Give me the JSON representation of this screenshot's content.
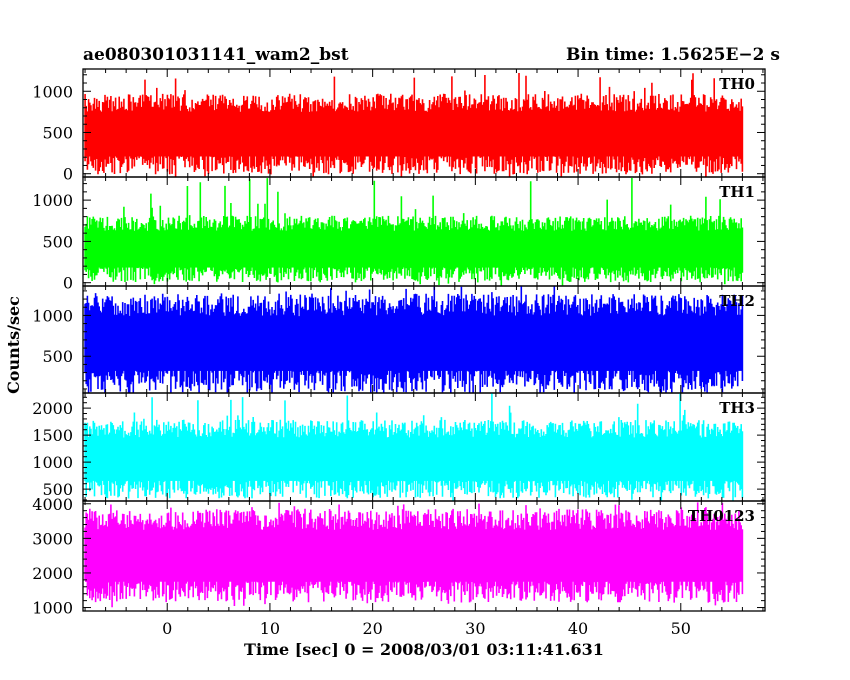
{
  "figure": {
    "title_left": "ae080301031141_wam2_bst",
    "title_right": "Bin time: 1.5625E−2 s",
    "xlabel": "Time [sec] 0 = 2008/03/01 03:11:41.631",
    "ylabel": "Counts/sec"
  },
  "chart_data": [
    {
      "type": "line",
      "name": "TH0",
      "color": "#ff0000",
      "xlim": [
        -8.2,
        58.2
      ],
      "x_range_data": [
        -8.0,
        56.0
      ],
      "ylim": [
        -40,
        1270
      ],
      "yticks": [
        0,
        500,
        1000
      ],
      "ytick_labels": [
        "0",
        "500",
        "1000"
      ],
      "lower_envelope_typical": 120,
      "upper_envelope_typical": 860,
      "occasional_peak": 1230,
      "bin_time_s": 0.015625
    },
    {
      "type": "line",
      "name": "TH1",
      "color": "#00ff00",
      "xlim": [
        -8.2,
        58.2
      ],
      "x_range_data": [
        -8.0,
        56.0
      ],
      "ylim": [
        -40,
        1280
      ],
      "yticks": [
        0,
        500,
        1000
      ],
      "ytick_labels": [
        "0",
        "500",
        "1000"
      ],
      "lower_envelope_typical": 110,
      "upper_envelope_typical": 720,
      "occasional_peak": 1270,
      "bin_time_s": 0.015625
    },
    {
      "type": "line",
      "name": "TH2",
      "color": "#0000ff",
      "xlim": [
        -8.2,
        58.2
      ],
      "x_range_data": [
        -8.0,
        56.0
      ],
      "ylim": [
        50,
        1360
      ],
      "yticks": [
        500,
        1000
      ],
      "ytick_labels": [
        "500",
        "1000"
      ],
      "lower_envelope_typical": 210,
      "upper_envelope_typical": 1130,
      "occasional_peak": 1360,
      "bin_time_s": 0.015625
    },
    {
      "type": "line",
      "name": "TH3",
      "color": "#00ffff",
      "xlim": [
        -8.2,
        58.2
      ],
      "x_range_data": [
        -8.0,
        56.0
      ],
      "ylim": [
        280,
        2280
      ],
      "yticks": [
        500,
        1000,
        1500,
        2000
      ],
      "ytick_labels": [
        "500",
        "1000",
        "1500",
        "2000"
      ],
      "lower_envelope_typical": 520,
      "upper_envelope_typical": 1620,
      "occasional_peak": 2280,
      "bin_time_s": 0.015625
    },
    {
      "type": "line",
      "name": "TH0123",
      "color": "#ff00ff",
      "xlim": [
        -8.2,
        58.2
      ],
      "x_range_data": [
        -8.0,
        56.0
      ],
      "ylim": [
        900,
        4080
      ],
      "yticks": [
        1000,
        2000,
        3000,
        4000
      ],
      "ytick_labels": [
        "1000",
        "2000",
        "3000",
        "4000"
      ],
      "lower_envelope_typical": 1500,
      "upper_envelope_typical": 3550,
      "occasional_peak": 4050,
      "bin_time_s": 0.015625
    }
  ],
  "x_axis": {
    "ticks": [
      0,
      10,
      20,
      30,
      40,
      50
    ],
    "tick_labels": [
      "0",
      "10",
      "20",
      "30",
      "40",
      "50"
    ],
    "minor_step": 2
  }
}
